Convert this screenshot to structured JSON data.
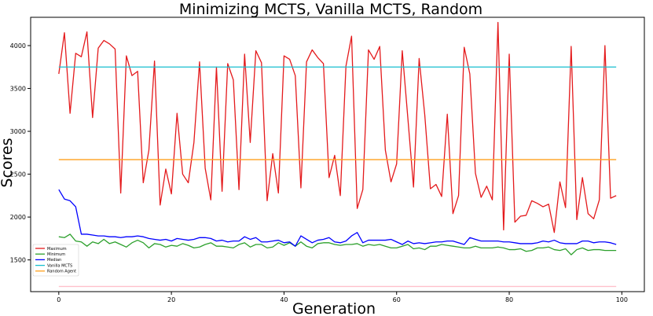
{
  "chart_data": {
    "type": "line",
    "title": "Minimizing MCTS, Vanilla MCTS, Random",
    "xlabel": "Generation",
    "ylabel": "Scores",
    "xlim": [
      -5,
      104
    ],
    "ylim": [
      1130,
      4330
    ],
    "xticks": [
      0,
      20,
      40,
      60,
      80,
      100
    ],
    "yticks": [
      1500,
      2000,
      2500,
      3000,
      3500,
      4000
    ],
    "grid": false,
    "legend_position": "bottom-left",
    "x_start": 0,
    "series": [
      {
        "name": "Maximum",
        "color": "#e41a1c",
        "values": [
          3670,
          4150,
          3210,
          3910,
          3870,
          4160,
          3160,
          3970,
          4060,
          4020,
          3960,
          2280,
          3880,
          3650,
          3700,
          2400,
          2780,
          3820,
          2140,
          2560,
          2270,
          3210,
          2500,
          2400,
          2870,
          3810,
          2570,
          2200,
          3750,
          2300,
          3790,
          3600,
          2320,
          3900,
          2870,
          3940,
          3800,
          2190,
          2740,
          2280,
          3880,
          3840,
          3650,
          2340,
          3810,
          3950,
          3860,
          3790,
          2460,
          2720,
          2250,
          3760,
          4110,
          2100,
          2320,
          3950,
          3840,
          3990,
          2780,
          2410,
          2620,
          3940,
          3150,
          2350,
          3850,
          3190,
          2330,
          2380,
          2240,
          3200,
          2040,
          2250,
          3980,
          3670,
          2510,
          2230,
          2360,
          2200,
          4270,
          1850,
          3900,
          1940,
          2010,
          2020,
          2190,
          2160,
          2120,
          2150,
          1820,
          2410,
          2110,
          3990,
          1970,
          2460,
          2040,
          1980,
          2200,
          4000,
          2220,
          2250
        ]
      },
      {
        "name": "Minimum",
        "color": "#2ca02c",
        "values": [
          1770,
          1760,
          1800,
          1720,
          1710,
          1660,
          1710,
          1690,
          1740,
          1690,
          1710,
          1680,
          1650,
          1700,
          1730,
          1700,
          1640,
          1690,
          1680,
          1650,
          1670,
          1660,
          1690,
          1670,
          1640,
          1650,
          1680,
          1700,
          1660,
          1660,
          1650,
          1640,
          1680,
          1700,
          1650,
          1680,
          1680,
          1640,
          1650,
          1700,
          1670,
          1700,
          1660,
          1710,
          1660,
          1640,
          1690,
          1700,
          1700,
          1680,
          1670,
          1680,
          1680,
          1690,
          1660,
          1680,
          1670,
          1680,
          1660,
          1640,
          1640,
          1660,
          1680,
          1630,
          1640,
          1620,
          1660,
          1660,
          1680,
          1670,
          1660,
          1650,
          1640,
          1640,
          1660,
          1640,
          1640,
          1640,
          1650,
          1640,
          1620,
          1620,
          1630,
          1600,
          1610,
          1640,
          1640,
          1650,
          1620,
          1610,
          1630,
          1560,
          1620,
          1640,
          1610,
          1620,
          1620,
          1610,
          1610,
          1610
        ]
      },
      {
        "name": "Median",
        "color": "#0000ff",
        "values": [
          2320,
          2210,
          2190,
          2120,
          1800,
          1800,
          1790,
          1780,
          1780,
          1770,
          1770,
          1760,
          1770,
          1770,
          1780,
          1770,
          1750,
          1740,
          1730,
          1740,
          1720,
          1750,
          1740,
          1730,
          1740,
          1760,
          1760,
          1750,
          1720,
          1730,
          1710,
          1720,
          1720,
          1770,
          1740,
          1760,
          1710,
          1710,
          1720,
          1730,
          1700,
          1710,
          1660,
          1780,
          1740,
          1700,
          1730,
          1740,
          1760,
          1710,
          1700,
          1720,
          1780,
          1820,
          1700,
          1730,
          1730,
          1730,
          1730,
          1740,
          1710,
          1680,
          1720,
          1690,
          1700,
          1690,
          1700,
          1710,
          1710,
          1720,
          1720,
          1700,
          1680,
          1760,
          1740,
          1720,
          1720,
          1720,
          1720,
          1710,
          1710,
          1700,
          1690,
          1690,
          1690,
          1700,
          1720,
          1710,
          1730,
          1700,
          1690,
          1690,
          1690,
          1720,
          1720,
          1700,
          1710,
          1710,
          1700,
          1680
        ]
      },
      {
        "name": "Vanilla MCTS",
        "color": "#17becf",
        "constant": 3750
      },
      {
        "name": "Random Agent",
        "color": "#ff9f1c",
        "constant": 2670
      },
      {
        "name": "",
        "color": "#ffc0cb",
        "constant": 1190
      }
    ]
  }
}
